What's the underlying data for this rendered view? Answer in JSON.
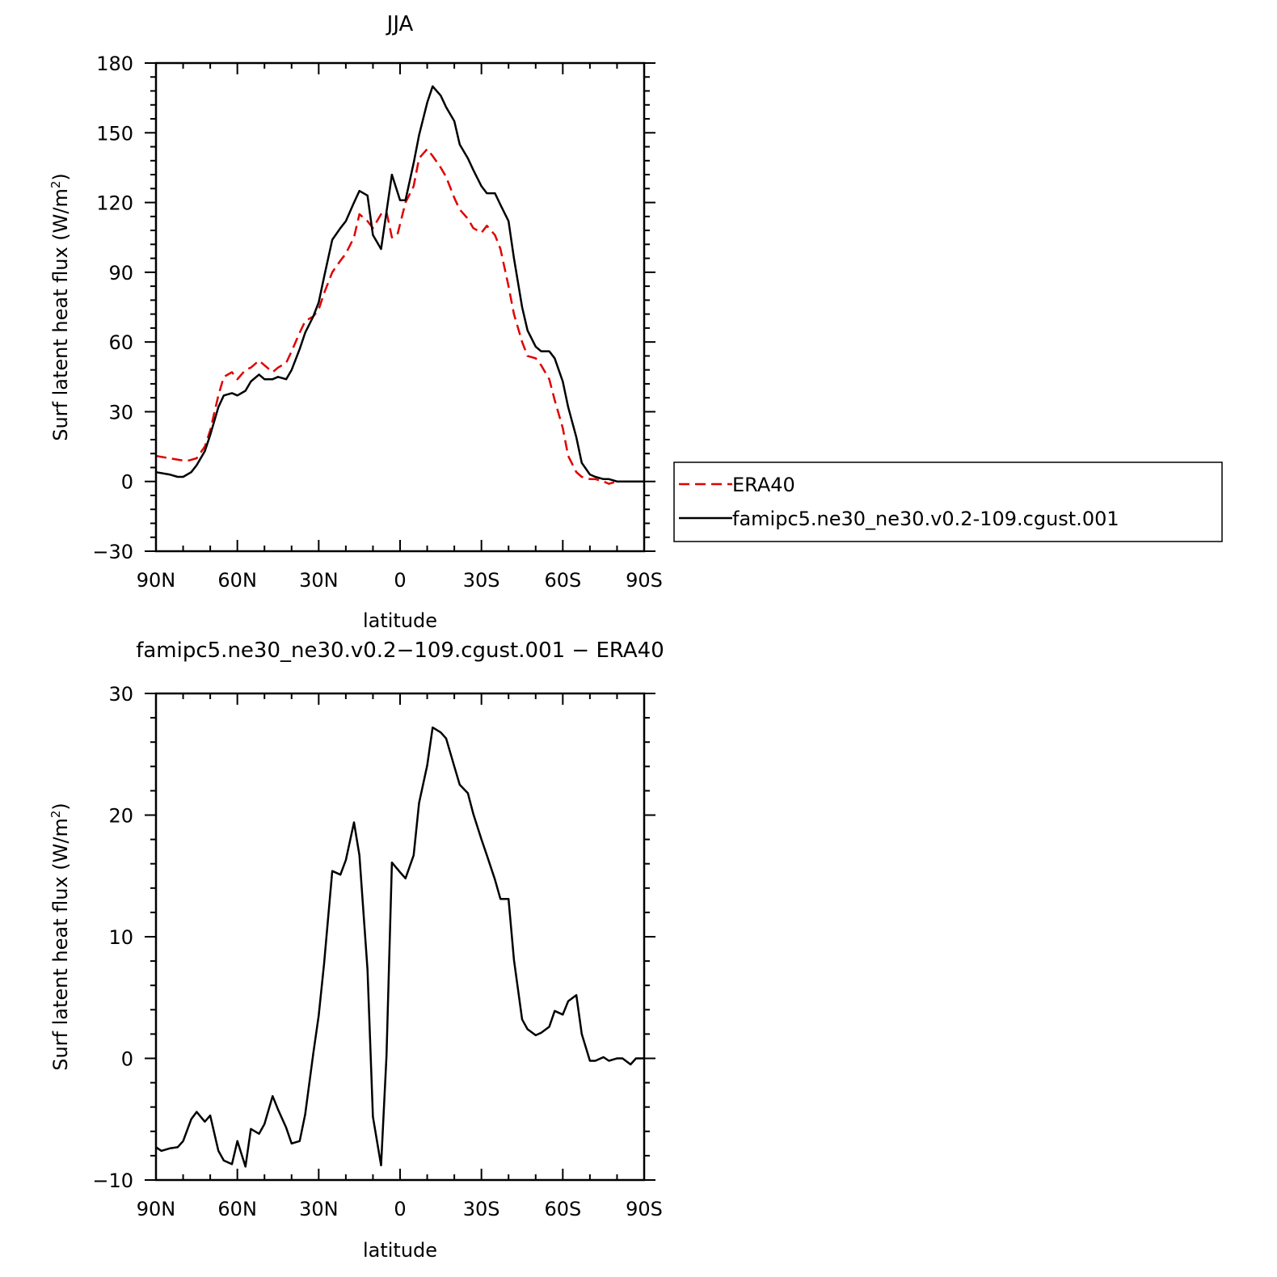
{
  "colors": {
    "era40": "#e00000",
    "model": "#000000",
    "axis": "#000000"
  },
  "legend": {
    "placement": "right of top panel",
    "items": [
      {
        "label": "ERA40",
        "color": "#e00000",
        "style": "dashed"
      },
      {
        "label": "famipc5.ne30_ne30.v0.2-109.cgust.001",
        "color": "#000000",
        "style": "solid"
      }
    ]
  },
  "chart_data": [
    {
      "type": "line",
      "title": "JJA",
      "xlabel": "latitude",
      "ylabel": "Surf latent heat flux (W/m²)",
      "ylabel_main": "Surf latent heat flux (W/m",
      "ylabel_sup": "2",
      "ylabel_close": ")",
      "xlim": [
        90,
        -90
      ],
      "ylim": [
        -30,
        180
      ],
      "xticks": [
        90,
        60,
        30,
        0,
        -30,
        -60,
        -90
      ],
      "xtick_labels": [
        "90N",
        "60N",
        "30N",
        "0",
        "30S",
        "60S",
        "90S"
      ],
      "yticks": [
        -30,
        0,
        30,
        60,
        90,
        120,
        150,
        180
      ],
      "ytick_labels": [
        "−30",
        "0",
        "30",
        "60",
        "90",
        "120",
        "150",
        "180"
      ],
      "series": [
        {
          "name": "ERA40",
          "style": "dashed",
          "color": "#e00000",
          "x": [
            90,
            85,
            80,
            78,
            75,
            72,
            70,
            67,
            65,
            62,
            60,
            57,
            55,
            52,
            50,
            47,
            45,
            42,
            40,
            37,
            35,
            32,
            30,
            28,
            25,
            22,
            20,
            17,
            15,
            12,
            10,
            7,
            5,
            3,
            1,
            -2,
            -5,
            -7,
            -10,
            -12,
            -15,
            -17,
            -20,
            -22,
            -25,
            -27,
            -30,
            -32,
            -35,
            -37,
            -40,
            -42,
            -45,
            -47,
            -50,
            -52,
            -55,
            -57,
            -60,
            -62,
            -65,
            -67,
            -70,
            -72,
            -75,
            -77,
            -80,
            -82,
            -85,
            -87,
            -90
          ],
          "y": [
            11,
            10,
            9,
            9,
            10,
            15,
            22,
            37,
            45,
            47,
            44,
            48,
            49,
            52,
            50,
            47,
            49,
            51,
            56,
            64,
            69,
            71,
            74,
            81,
            90,
            95,
            98,
            105,
            115,
            112,
            109,
            115,
            116,
            105,
            106,
            120,
            127,
            139,
            143,
            140,
            135,
            131,
            122,
            117,
            113,
            109,
            107,
            110,
            106,
            100,
            84,
            72,
            60,
            54,
            53,
            50,
            44,
            35,
            23,
            11,
            4,
            2,
            1,
            1,
            0,
            -1,
            0,
            0,
            0,
            0,
            0
          ]
        },
        {
          "name": "famipc5.ne30_ne30.v0.2-109.cgust.001",
          "style": "solid",
          "color": "#000000",
          "x": [
            90,
            85,
            82,
            80,
            77,
            75,
            72,
            70,
            67,
            65,
            62,
            60,
            57,
            55,
            52,
            50,
            47,
            45,
            42,
            40,
            37,
            35,
            32,
            30,
            28,
            25,
            22,
            20,
            17,
            15,
            12,
            10,
            7,
            5,
            3,
            0,
            -2,
            -5,
            -7,
            -10,
            -12,
            -15,
            -17,
            -20,
            -22,
            -25,
            -27,
            -30,
            -32,
            -35,
            -37,
            -40,
            -42,
            -45,
            -47,
            -50,
            -52,
            -55,
            -57,
            -60,
            -62,
            -65,
            -67,
            -70,
            -72,
            -75,
            -77,
            -80,
            -82,
            -85,
            -87,
            -90
          ],
          "y": [
            4,
            3,
            2,
            2,
            4,
            7,
            13,
            20,
            32,
            37,
            38,
            37,
            39,
            43,
            46,
            44,
            44,
            45,
            44,
            48,
            57,
            64,
            71,
            77,
            88,
            104,
            109,
            112,
            120,
            125,
            123,
            106,
            100,
            116,
            132,
            121,
            121,
            137,
            149,
            163,
            170,
            166,
            161,
            155,
            145,
            139,
            134,
            127,
            124,
            124,
            119,
            112,
            96,
            75,
            65,
            58,
            56,
            56,
            53,
            43,
            32,
            19,
            8,
            3,
            2,
            1,
            1,
            0,
            0,
            0,
            0,
            0
          ]
        }
      ]
    },
    {
      "type": "line",
      "title": "famipc5.ne30_ne30.v0.2−109.cgust.001 − ERA40",
      "xlabel": "latitude",
      "ylabel": "Surf latent heat flux (W/m²)",
      "ylabel_main": "Surf latent heat flux (W/m",
      "ylabel_sup": "2",
      "ylabel_close": ")",
      "xlim": [
        90,
        -90
      ],
      "ylim": [
        -10,
        30
      ],
      "xticks": [
        90,
        60,
        30,
        0,
        -30,
        -60,
        -90
      ],
      "xtick_labels": [
        "90N",
        "60N",
        "30N",
        "0",
        "30S",
        "60S",
        "90S"
      ],
      "yticks": [
        -10,
        0,
        10,
        20,
        30
      ],
      "ytick_labels": [
        "−10",
        "0",
        "10",
        "20",
        "30"
      ],
      "series": [
        {
          "style": "solid",
          "color": "#000000",
          "x": [
            90,
            88,
            85,
            82,
            80,
            77,
            75,
            72,
            70,
            67,
            65,
            62,
            60,
            57,
            55,
            52,
            50,
            47,
            45,
            42,
            40,
            37,
            35,
            32,
            30,
            28,
            25,
            22,
            20,
            17,
            15,
            12,
            10,
            7,
            5,
            3,
            0,
            -2,
            -5,
            -7,
            -10,
            -12,
            -15,
            -17,
            -20,
            -22,
            -25,
            -27,
            -30,
            -32,
            -35,
            -37,
            -40,
            -42,
            -45,
            -47,
            -50,
            -52,
            -55,
            -57,
            -60,
            -62,
            -65,
            -67,
            -70,
            -72,
            -75,
            -77,
            -80,
            -82,
            -85,
            -87,
            -90
          ],
          "y": [
            -7.3,
            -7.6,
            -7.4,
            -7.3,
            -6.8,
            -5.0,
            -4.4,
            -5.2,
            -4.7,
            -7.6,
            -8.4,
            -8.7,
            -6.8,
            -8.9,
            -5.8,
            -6.2,
            -5.4,
            -3.1,
            -4.2,
            -5.7,
            -7.0,
            -6.8,
            -4.6,
            0.4,
            3.5,
            7.8,
            15.4,
            15.1,
            16.3,
            19.4,
            16.7,
            7.3,
            -4.8,
            -8.8,
            0.2,
            16.1,
            15.3,
            14.8,
            16.7,
            21.0,
            24.1,
            27.2,
            26.8,
            26.3,
            24.0,
            22.5,
            21.8,
            20.1,
            18.0,
            16.7,
            14.7,
            13.1,
            13.1,
            8.1,
            3.2,
            2.4,
            1.9,
            2.1,
            2.6,
            3.9,
            3.6,
            4.7,
            5.2,
            2.0,
            -0.2,
            -0.2,
            0.1,
            -0.2,
            0.0,
            0.0,
            -0.5,
            0.0,
            0.0
          ]
        }
      ]
    }
  ]
}
